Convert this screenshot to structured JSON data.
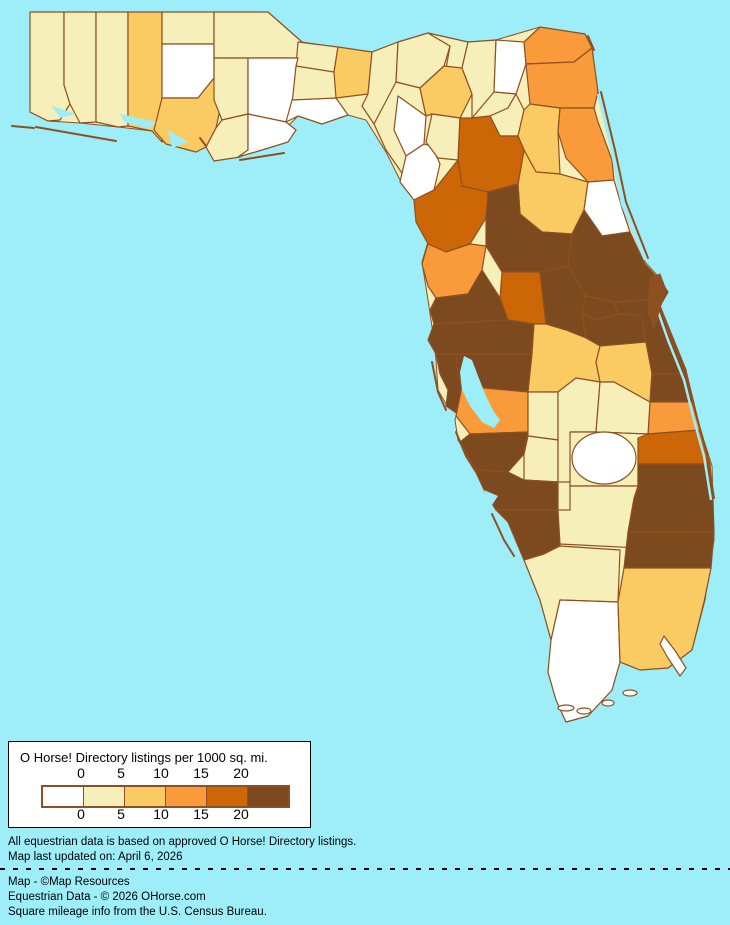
{
  "map": {
    "region": "Florida counties choropleth",
    "water_color": "#9DEEF8",
    "border_color": "#8E5022",
    "palette": {
      "p0": "#FFFFFF",
      "p1": "#F6EFB9",
      "p2": "#FBCB63",
      "p3": "#F99B3B",
      "p4": "#CC6607",
      "p5": "#7C4A1E"
    },
    "counties": {
      "escambia": "p1",
      "santarosa": "p1",
      "okaloosa": "p1",
      "walton": "p2",
      "holmes": "p1",
      "washington": "p0",
      "bay": "p2",
      "jackson": "p1",
      "calhoun": "p1",
      "gulf": "p1",
      "gadsden": "p1",
      "liberty": "p0",
      "franklin": "p0",
      "leon": "p2",
      "wakulla": "p0",
      "jefferson": "p1",
      "madison": "p1",
      "taylor": "p1",
      "hamilton": "p1",
      "suwannee": "p2",
      "columbia": "p1",
      "lafayette": "p0",
      "dixie": "p0",
      "gilchrist": "p1",
      "baker": "p0",
      "union": "p1",
      "bradford": "p1",
      "nassau": "p3",
      "duval": "p3",
      "clay": "p2",
      "stjohns": "p3",
      "putnam": "p2",
      "flagler": "p0",
      "alachua": "p4",
      "levy": "p4",
      "marion": "p5",
      "volusia": "p5",
      "citrus": "p3",
      "sumter": "p4",
      "hernando": "p5",
      "lake": "p5",
      "seminole": "p5",
      "orange": "p5",
      "pasco": "p5",
      "pinellas": "p5",
      "hillsborough": "p5",
      "polk": "p2",
      "osceola": "p2",
      "brevard": "p5",
      "indianriver": "p5",
      "stlucie": "p3",
      "martin": "p4",
      "manatee": "p3",
      "hardee": "p1",
      "desoto": "p1",
      "highlands": "p1",
      "okeechobee": "p1",
      "glades": "p1",
      "sarasota": "p5",
      "charlotte": "p5",
      "lee": "p5",
      "hendry": "p1",
      "collier": "p1",
      "monroe": "p0",
      "palmbeach": "p5",
      "broward": "p5",
      "miamidade": "p2",
      "lake_okeechobee": "p0",
      "florida_keys": "p0"
    }
  },
  "legend": {
    "title": "O Horse! Directory listings per 1000 sq. mi.",
    "bucket_order": [
      "p0",
      "p1",
      "p2",
      "p3",
      "p4",
      "p5"
    ],
    "ticks_top": [
      "0",
      "5",
      "10",
      "15",
      "20"
    ],
    "ticks_bottom": [
      "0",
      "5",
      "10",
      "15",
      "20"
    ]
  },
  "notes": {
    "line1": "All equestrian data is based on approved O Horse! Directory listings.",
    "line2": "Map last updated on: April 6, 2026"
  },
  "credits": {
    "line1": "Map - ©Map Resources",
    "line2": "Equestrian Data - © 2026 OHorse.com",
    "line3": "Square mileage info from the U.S. Census Bureau."
  }
}
